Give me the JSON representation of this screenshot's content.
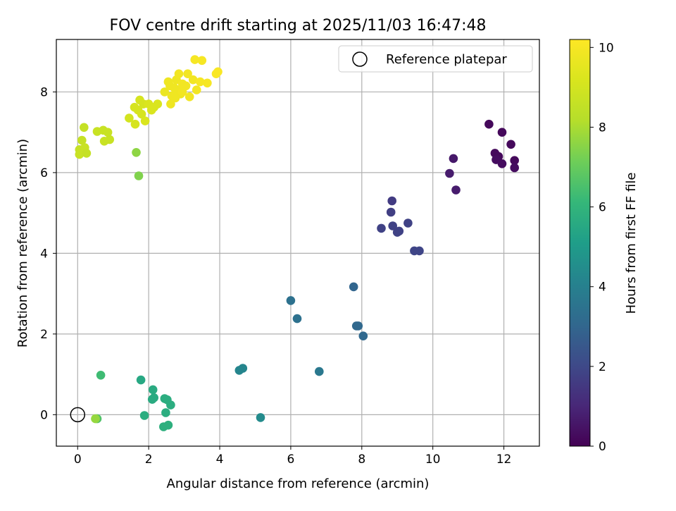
{
  "chart_data": {
    "type": "scatter",
    "title": "FOV centre drift starting at 2025/11/03 16:47:48",
    "xlabel": "Angular distance from reference (arcmin)",
    "ylabel": "Rotation from reference (arcmin)",
    "xlim": [
      -0.6,
      13
    ],
    "ylim": [
      -0.78,
      9.3
    ],
    "xticks": [
      0,
      2,
      4,
      6,
      8,
      10,
      12
    ],
    "yticks": [
      0,
      2,
      4,
      6,
      8
    ],
    "grid": true,
    "legend": {
      "position": "top-right",
      "label": "Reference platepar"
    },
    "reference_point": {
      "x": 0,
      "y": 0
    },
    "colorbar": {
      "label": "Hours from first FF file",
      "colormap": "viridis",
      "range": [
        0,
        10.2
      ],
      "ticks": [
        0,
        2,
        4,
        6,
        8,
        10
      ]
    },
    "series": [
      {
        "name": "FOV centre",
        "points": [
          [
            11.58,
            7.2,
            0.2
          ],
          [
            11.95,
            7.0,
            0.2
          ],
          [
            12.2,
            6.7,
            0.2
          ],
          [
            11.75,
            6.48,
            0.2
          ],
          [
            11.85,
            6.4,
            0.2
          ],
          [
            11.78,
            6.32,
            0.3
          ],
          [
            11.95,
            6.22,
            0.3
          ],
          [
            12.3,
            6.3,
            0.2
          ],
          [
            12.3,
            6.12,
            0.3
          ],
          [
            10.58,
            6.35,
            0.6
          ],
          [
            10.47,
            5.98,
            0.7
          ],
          [
            10.65,
            5.57,
            0.7
          ],
          [
            8.85,
            5.3,
            1.6
          ],
          [
            8.82,
            5.02,
            1.7
          ],
          [
            8.55,
            4.62,
            1.8
          ],
          [
            8.87,
            4.68,
            1.8
          ],
          [
            9.05,
            4.55,
            1.8
          ],
          [
            9.0,
            4.52,
            1.8
          ],
          [
            9.3,
            4.75,
            1.8
          ],
          [
            9.48,
            4.06,
            1.9
          ],
          [
            9.62,
            4.06,
            1.9
          ],
          [
            7.77,
            3.17,
            3.0
          ],
          [
            7.85,
            2.2,
            3.1
          ],
          [
            7.9,
            2.2,
            3.1
          ],
          [
            8.04,
            1.95,
            3.1
          ],
          [
            6.0,
            2.83,
            3.4
          ],
          [
            6.18,
            2.38,
            3.4
          ],
          [
            6.8,
            1.07,
            3.7
          ],
          [
            4.65,
            1.15,
            4.2
          ],
          [
            4.55,
            1.1,
            4.2
          ],
          [
            5.15,
            -0.07,
            4.4
          ],
          [
            1.78,
            0.86,
            5.5
          ],
          [
            2.12,
            0.62,
            5.6
          ],
          [
            2.15,
            0.42,
            5.6
          ],
          [
            2.1,
            0.38,
            5.6
          ],
          [
            2.45,
            0.4,
            5.7
          ],
          [
            2.52,
            0.37,
            5.7
          ],
          [
            2.62,
            0.24,
            5.7
          ],
          [
            2.48,
            0.05,
            5.7
          ],
          [
            1.88,
            -0.02,
            5.7
          ],
          [
            2.42,
            -0.3,
            5.8
          ],
          [
            2.55,
            -0.26,
            5.8
          ],
          [
            0.65,
            0.98,
            6.3
          ],
          [
            0.55,
            -0.1,
            6.6
          ],
          [
            0.5,
            -0.1,
            7.7
          ],
          [
            1.65,
            6.5,
            7.6
          ],
          [
            1.72,
            5.92,
            7.4
          ],
          [
            0.18,
            7.12,
            8.6
          ],
          [
            0.05,
            6.57,
            8.6
          ],
          [
            0.12,
            6.8,
            8.6
          ],
          [
            0.05,
            6.45,
            8.7
          ],
          [
            0.2,
            6.62,
            8.7
          ],
          [
            0.25,
            6.48,
            8.6
          ],
          [
            0.55,
            7.02,
            8.7
          ],
          [
            0.72,
            7.05,
            8.7
          ],
          [
            0.85,
            7.0,
            8.7
          ],
          [
            0.75,
            6.78,
            8.7
          ],
          [
            0.9,
            6.82,
            8.7
          ],
          [
            1.45,
            7.35,
            9.0
          ],
          [
            1.6,
            7.62,
            9.1
          ],
          [
            1.7,
            7.55,
            9.1
          ],
          [
            1.75,
            7.8,
            9.1
          ],
          [
            1.8,
            7.45,
            9.1
          ],
          [
            1.85,
            7.7,
            9.1
          ],
          [
            1.9,
            7.28,
            9.2
          ],
          [
            1.62,
            7.2,
            9.1
          ],
          [
            2.0,
            7.7,
            9.2
          ],
          [
            2.08,
            7.55,
            9.2
          ],
          [
            2.15,
            7.62,
            9.2
          ],
          [
            2.25,
            7.7,
            9.2
          ],
          [
            2.45,
            8.0,
            9.7
          ],
          [
            2.55,
            8.25,
            9.8
          ],
          [
            2.6,
            8.15,
            9.8
          ],
          [
            2.65,
            7.9,
            9.8
          ],
          [
            2.72,
            8.1,
            9.8
          ],
          [
            2.78,
            8.3,
            9.8
          ],
          [
            2.85,
            8.45,
            9.9
          ],
          [
            2.82,
            8.05,
            9.8
          ],
          [
            2.9,
            7.95,
            9.8
          ],
          [
            2.95,
            8.2,
            9.9
          ],
          [
            3.05,
            8.15,
            9.9
          ],
          [
            3.1,
            8.45,
            9.9
          ],
          [
            3.15,
            7.88,
            9.9
          ],
          [
            3.25,
            8.3,
            9.9
          ],
          [
            3.35,
            8.05,
            9.9
          ],
          [
            3.45,
            8.25,
            10.0
          ],
          [
            3.3,
            8.8,
            10.0
          ],
          [
            3.5,
            8.78,
            10.0
          ],
          [
            3.65,
            8.22,
            10.0
          ],
          [
            3.9,
            8.45,
            10.1
          ],
          [
            3.95,
            8.5,
            10.1
          ],
          [
            2.62,
            7.7,
            9.8
          ],
          [
            2.75,
            7.85,
            9.8
          ],
          [
            2.95,
            8.0,
            9.9
          ]
        ]
      }
    ]
  }
}
